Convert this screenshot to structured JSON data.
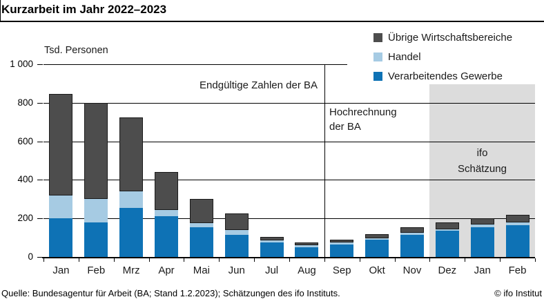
{
  "title": "Kurzarbeit im Jahr 2022–2023",
  "y_axis": {
    "unit_label": "Tsd. Personen",
    "tick_labels": [
      "1 000",
      "800",
      "600",
      "400",
      "200",
      "0"
    ],
    "tick_values": [
      1000,
      800,
      600,
      400,
      200,
      0
    ]
  },
  "legend": [
    {
      "label": "Übrige Wirtschaftsbereiche",
      "color": "#4d4d4d"
    },
    {
      "label": "Handel",
      "color": "#a6cbe3"
    },
    {
      "label": "Verarbeitendes Gewerbe",
      "color": "#0e72b5"
    }
  ],
  "annotations": {
    "final_zone": "Endgültige Zahlen der BA",
    "projection_line1": "Hochrechnung",
    "projection_line2": "der BA",
    "estimate_line1": "ifo",
    "estimate_line2": "Schätzung"
  },
  "footer": {
    "source": "Quelle: Bundesagentur für Arbeit (BA; Stand 1.2.2023); Schätzungen des ifo Instituts.",
    "copyright": "© ifo Institut"
  },
  "colors": {
    "verarbeitendes_gewerbe": "#0e72b5",
    "handel": "#a6cbe3",
    "uebrige_wirtschaftsbereiche": "#4d4d4d",
    "estimate_shade": "#dcdcdc"
  },
  "chart_data": {
    "type": "bar",
    "stacked": true,
    "title": "Kurzarbeit im Jahr 2022–2023",
    "ylabel": "Tsd. Personen",
    "ylim": [
      0,
      1000
    ],
    "yticks": [
      0,
      200,
      400,
      600,
      800,
      1000
    ],
    "grid": true,
    "legend_position": "top-right",
    "categories": [
      "Jan",
      "Feb",
      "Mrz",
      "Apr",
      "Mai",
      "Jun",
      "Jul",
      "Aug",
      "Sep",
      "Okt",
      "Nov",
      "Dez",
      "Jan",
      "Feb"
    ],
    "series": [
      {
        "name": "Verarbeitendes Gewerbe",
        "color": "#0e72b5",
        "values": [
          200,
          180,
          255,
          210,
          155,
          115,
          75,
          50,
          65,
          90,
          115,
          135,
          155,
          165
        ]
      },
      {
        "name": "Handel",
        "color": "#a6cbe3",
        "values": [
          120,
          120,
          85,
          35,
          20,
          25,
          10,
          10,
          10,
          8,
          10,
          10,
          15,
          15
        ]
      },
      {
        "name": "Übrige Wirtschaftsbereiche",
        "color": "#4d4d4d",
        "values": [
          525,
          500,
          385,
          195,
          125,
          85,
          20,
          15,
          15,
          22,
          30,
          35,
          30,
          40
        ]
      }
    ],
    "totals": [
      845,
      800,
      725,
      440,
      300,
      225,
      105,
      75,
      90,
      120,
      155,
      180,
      200,
      220
    ],
    "zone_labels": [
      "Endgültige Zahlen der BA",
      "Hochrechnung der BA",
      "ifo Schätzung"
    ]
  }
}
